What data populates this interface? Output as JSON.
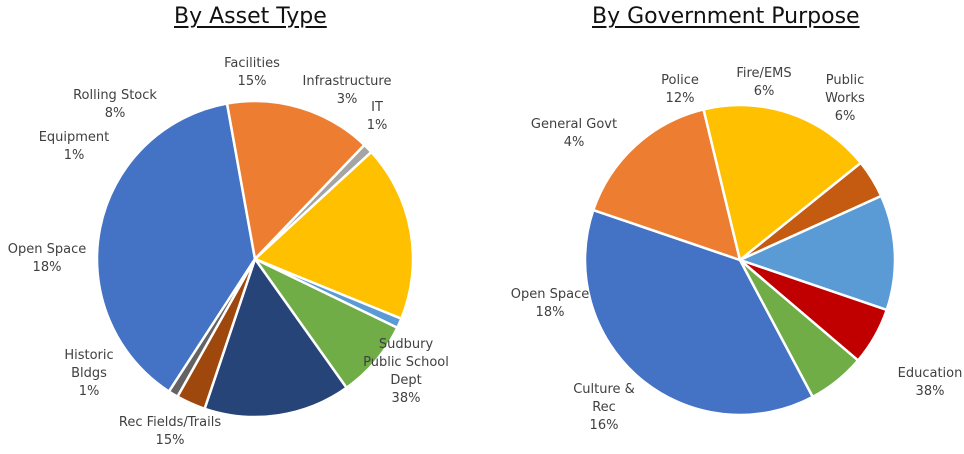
{
  "chart_data": [
    {
      "type": "pie",
      "title": "By Asset Type",
      "start_angle_deg": 123,
      "slices": [
        {
          "label": "Sudbury Public School Dept",
          "label_lines": [
            "Sudbury",
            "Public School",
            "Dept"
          ],
          "percent_label": "38%",
          "value": 38,
          "color": "#4472C4"
        },
        {
          "label": "Rec Fields/Trails",
          "label_lines": [
            "Rec Fields/Trails"
          ],
          "percent_label": "15%",
          "value": 15,
          "color": "#ED7D31"
        },
        {
          "label": "Historic Bldgs",
          "label_lines": [
            "Historic",
            "Bldgs"
          ],
          "percent_label": "1%",
          "value": 1,
          "color": "#A5A5A5"
        },
        {
          "label": "Open Space",
          "label_lines": [
            "Open Space"
          ],
          "percent_label": "18%",
          "value": 18,
          "color": "#FFC000"
        },
        {
          "label": "Equipment",
          "label_lines": [
            "Equipment"
          ],
          "percent_label": "1%",
          "value": 1,
          "color": "#5B9BD5"
        },
        {
          "label": "Rolling Stock",
          "label_lines": [
            "Rolling Stock"
          ],
          "percent_label": "8%",
          "value": 8,
          "color": "#70AD47"
        },
        {
          "label": "Facilities",
          "label_lines": [
            "Facilities"
          ],
          "percent_label": "15%",
          "value": 15,
          "color": "#264478"
        },
        {
          "label": "Infrastructure",
          "label_lines": [
            "Infrastructure"
          ],
          "percent_label": "3%",
          "value": 3,
          "color": "#9E480E"
        },
        {
          "label": "IT",
          "label_lines": [
            "IT"
          ],
          "percent_label": "1%",
          "value": 1,
          "color": "#636363"
        }
      ]
    },
    {
      "type": "pie",
      "title": "By Government Purpose",
      "start_angle_deg": 62,
      "slices": [
        {
          "label": "Education",
          "label_lines": [
            "Education"
          ],
          "percent_label": "38%",
          "value": 38,
          "color": "#4472C4"
        },
        {
          "label": "Culture & Rec",
          "label_lines": [
            "Culture &",
            "Rec"
          ],
          "percent_label": "16%",
          "value": 16,
          "color": "#ED7D31"
        },
        {
          "label": "Open Space",
          "label_lines": [
            "Open Space"
          ],
          "percent_label": "18%",
          "value": 18,
          "color": "#FFC000"
        },
        {
          "label": "General Govt",
          "label_lines": [
            "General Govt"
          ],
          "percent_label": "4%",
          "value": 4,
          "color": "#C55A11"
        },
        {
          "label": "Police",
          "label_lines": [
            "Police"
          ],
          "percent_label": "12%",
          "value": 12,
          "color": "#5B9BD5"
        },
        {
          "label": "Fire/EMS",
          "label_lines": [
            "Fire/EMS"
          ],
          "percent_label": "6%",
          "value": 6,
          "color": "#C00000"
        },
        {
          "label": "Public Works",
          "label_lines": [
            "Public",
            "Works"
          ],
          "percent_label": "6%",
          "value": 6,
          "color": "#70AD47"
        }
      ]
    }
  ]
}
